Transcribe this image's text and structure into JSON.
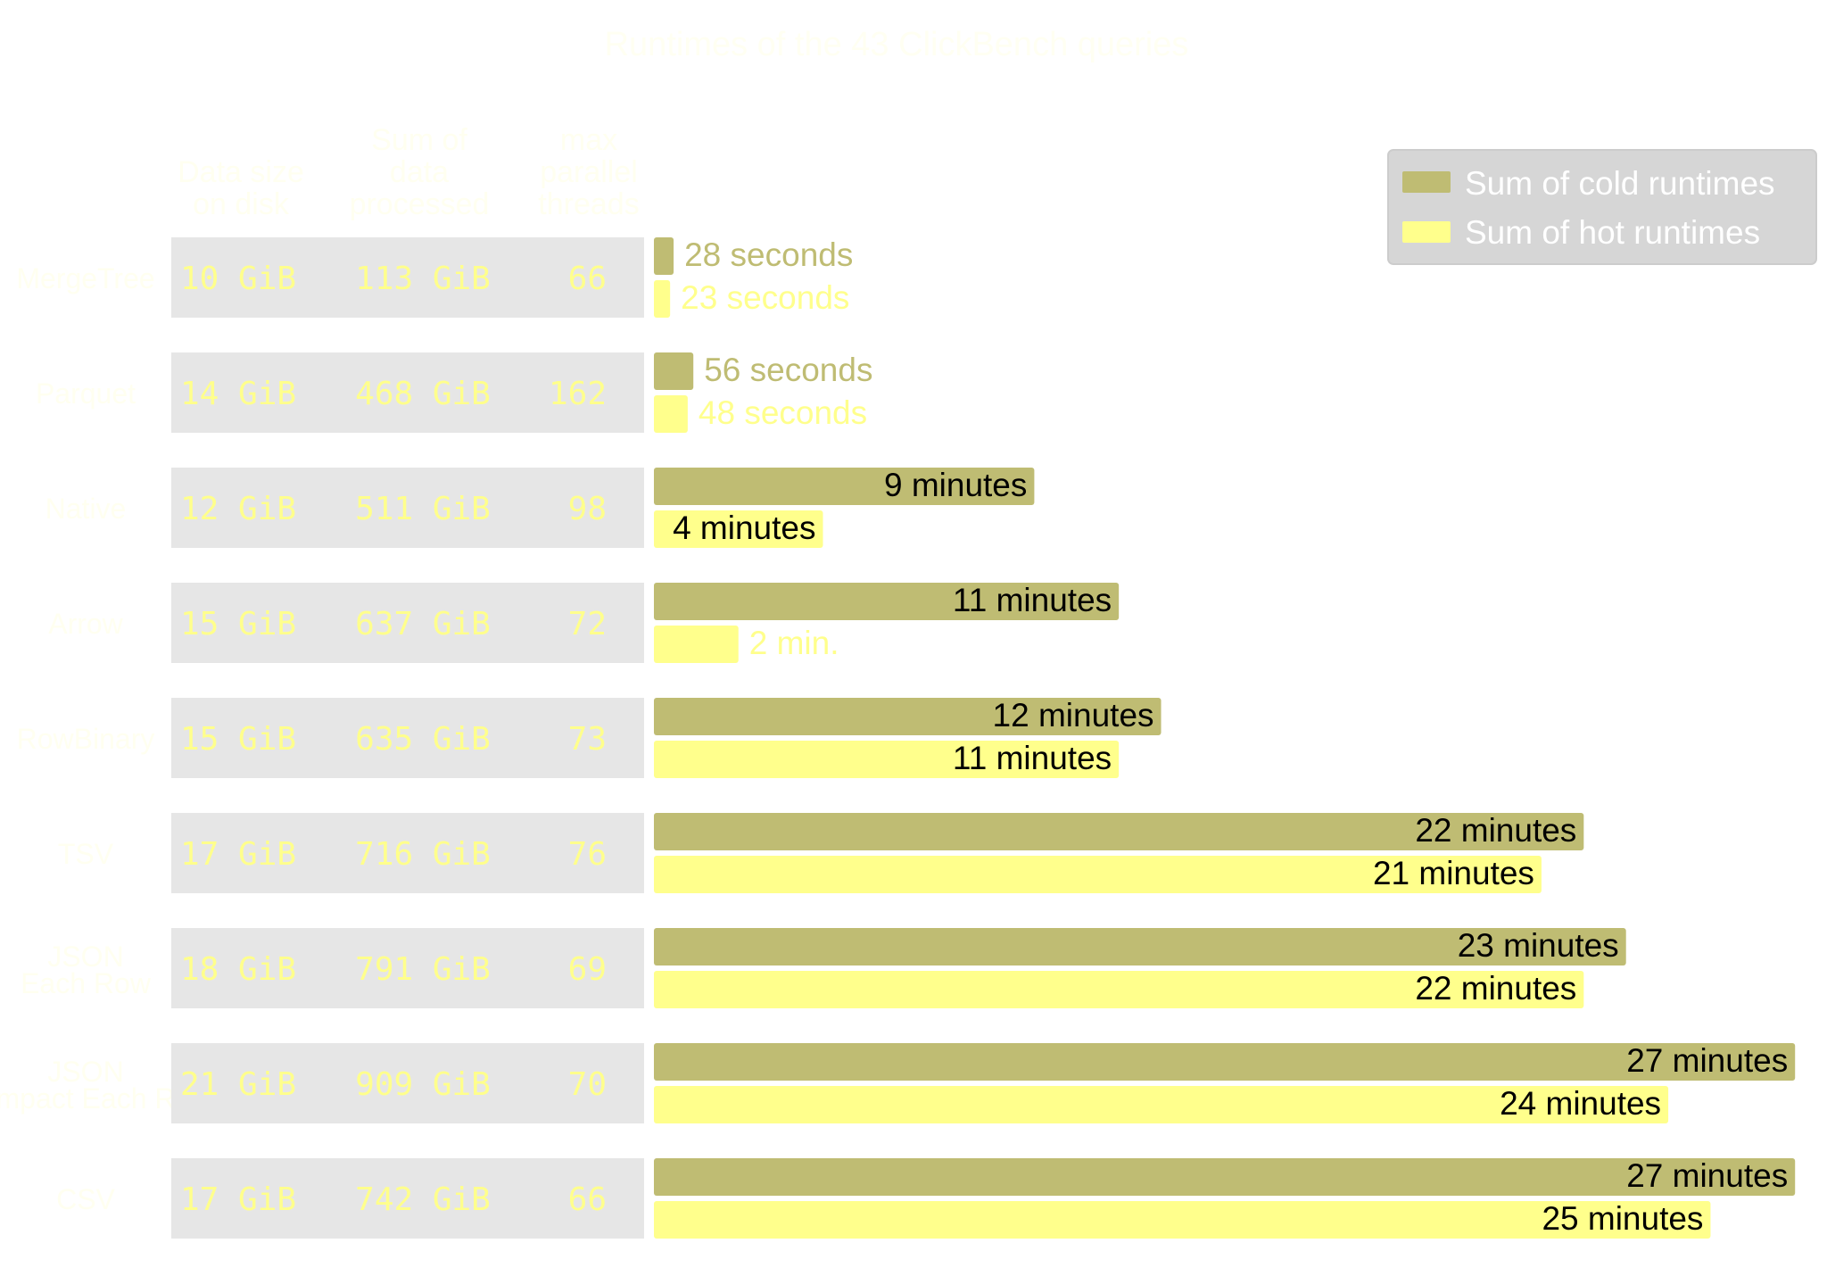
{
  "chart_data": {
    "type": "bar",
    "title": "Runtimes of the 43 ClickBench queries",
    "columns": [
      "Data size on disk",
      "Sum of data processed",
      "max parallel threads"
    ],
    "categories": [
      "MergeTree",
      "Parquet",
      "Native",
      "Arrow",
      "RowBinary",
      "TSV",
      "JSON Each Row",
      "JSON Compact Each Row",
      "CSV"
    ],
    "data_size": [
      "10 GiB",
      "14 GiB",
      "12 GiB",
      "15 GiB",
      "15 GiB",
      "17 GiB",
      "18 GiB",
      "21 GiB",
      "17 GiB"
    ],
    "data_processed": [
      "113 GiB",
      "468 GiB",
      "511 GiB",
      "637 GiB",
      "635 GiB",
      "716 GiB",
      "791 GiB",
      "909 GiB",
      "742 GiB"
    ],
    "max_threads": [
      "66",
      "162",
      "98",
      "72",
      "73",
      "76",
      "69",
      "70",
      "66"
    ],
    "xlim_seconds": [
      0,
      1640
    ],
    "legend_position": "top-right",
    "series": [
      {
        "name": "Sum of cold runtimes",
        "color": "#BFBC73",
        "values_seconds": [
          28,
          56,
          540,
          660,
          720,
          1320,
          1380,
          1620,
          1620
        ],
        "labels": [
          "28 seconds",
          "56 seconds",
          "9 minutes",
          "11 minutes",
          "12 minutes",
          "22 minutes",
          "23 minutes",
          "27 minutes",
          "27 minutes"
        ]
      },
      {
        "name": "Sum of hot runtimes",
        "color": "#FFFF8C",
        "values_seconds": [
          23,
          48,
          240,
          120,
          660,
          1260,
          1320,
          1440,
          1500
        ],
        "labels": [
          "23 seconds",
          "48 seconds",
          "4 minutes",
          "2 min.",
          "11 minutes",
          "21 minutes",
          "22 minutes",
          "24 minutes",
          "25 minutes"
        ]
      }
    ]
  }
}
